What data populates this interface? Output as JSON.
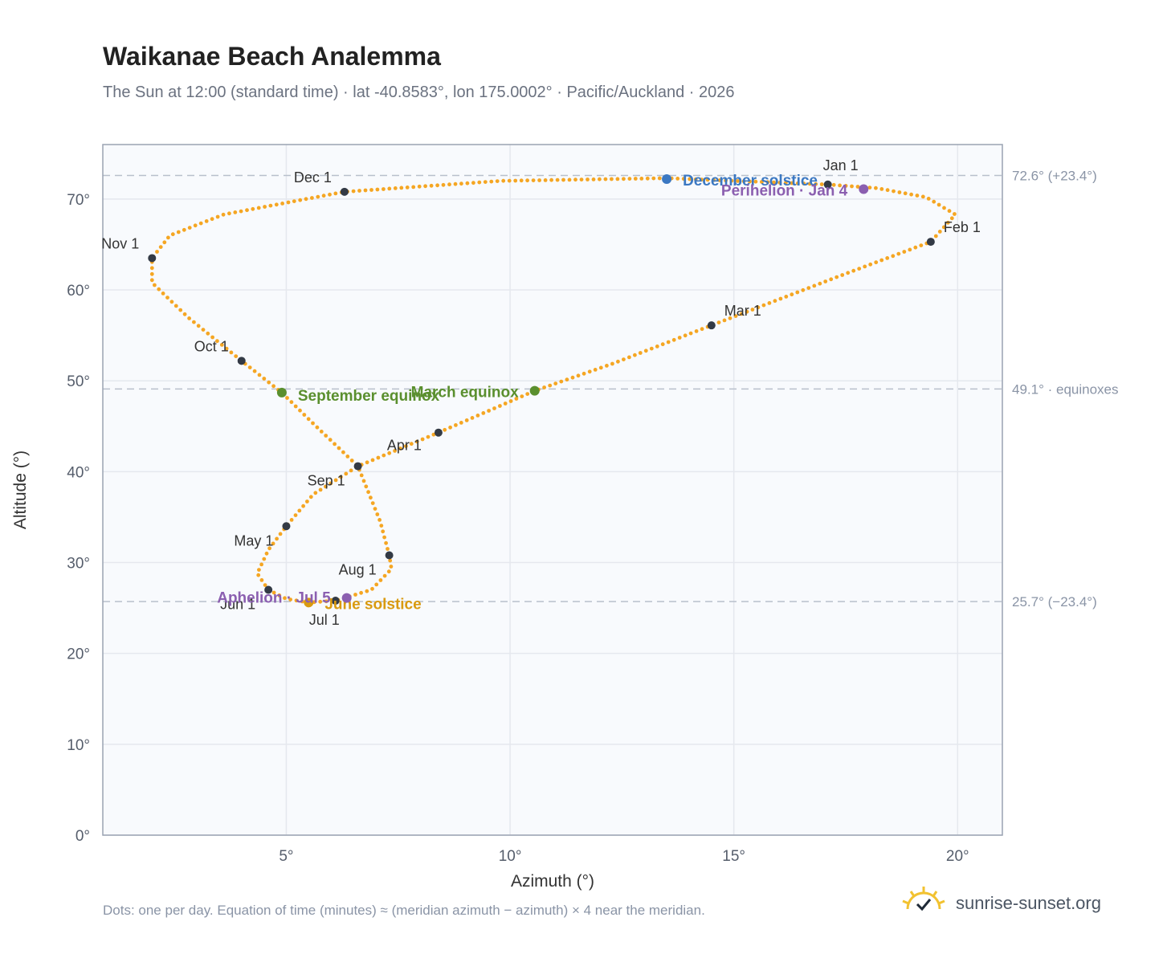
{
  "title": "Waikanae Beach Analemma",
  "subtitle": "The Sun at 12:00 (standard time) · lat -40.8583°, lon 175.0002° · Pacific/Auckland · 2026",
  "footnote": "Dots: one per day. Equation of time (minutes) ≈ (meridian azimuth − azimuth) × 4 near the meridian.",
  "brand": {
    "name": "sunrise-sunset.org",
    "logo_icon": "sun-logo-icon"
  },
  "colors": {
    "curve": "#f5a623",
    "month_marker": "#333a45",
    "solstice_dec": "#3b78c2",
    "solstice_jun": "#d99a10",
    "equinox": "#5a8f2e",
    "apsis": "#8b5fb0",
    "grid": "#e5e8ee",
    "plot_bg": "#f8fafd",
    "ref_line": "#b8c0cc",
    "axis_text": "#555d6b"
  },
  "chart_data": {
    "type": "scatter",
    "title": "Waikanae Beach Analemma",
    "xlabel": "Azimuth (°)",
    "ylabel": "Altitude (°)",
    "xlim": [
      0.9,
      21.0
    ],
    "ylim": [
      0,
      76
    ],
    "x_ticks": [
      5,
      10,
      15,
      20
    ],
    "x_tick_labels": [
      "5°",
      "10°",
      "15°",
      "20°"
    ],
    "y_ticks": [
      0,
      10,
      20,
      30,
      40,
      50,
      60,
      70
    ],
    "y_tick_labels": [
      "0°",
      "10°",
      "20°",
      "30°",
      "40°",
      "50°",
      "60°",
      "70°"
    ],
    "grid": true,
    "reference_lines": [
      {
        "y": 72.6,
        "label": "72.6° (+23.4°)"
      },
      {
        "y": 49.1,
        "label": "49.1° · equinoxes"
      },
      {
        "y": 25.7,
        "label": "25.7° (−23.4°)"
      }
    ],
    "curve_points": [
      {
        "x": 17.1,
        "y": 71.6
      },
      {
        "x": 18.2,
        "y": 71.2
      },
      {
        "x": 19.3,
        "y": 70.2
      },
      {
        "x": 19.95,
        "y": 68.3
      },
      {
        "x": 19.4,
        "y": 65.3
      },
      {
        "x": 17.4,
        "y": 61.6
      },
      {
        "x": 14.5,
        "y": 56.1
      },
      {
        "x": 12.3,
        "y": 51.9
      },
      {
        "x": 10.55,
        "y": 48.9
      },
      {
        "x": 8.4,
        "y": 44.3
      },
      {
        "x": 6.6,
        "y": 40.6
      },
      {
        "x": 5.6,
        "y": 37.5
      },
      {
        "x": 5.0,
        "y": 34.0
      },
      {
        "x": 4.6,
        "y": 31.4
      },
      {
        "x": 4.35,
        "y": 28.8
      },
      {
        "x": 4.6,
        "y": 27.0
      },
      {
        "x": 5.0,
        "y": 26.0
      },
      {
        "x": 5.5,
        "y": 25.6
      },
      {
        "x": 6.1,
        "y": 25.8
      },
      {
        "x": 6.9,
        "y": 27.0
      },
      {
        "x": 7.35,
        "y": 29.3
      },
      {
        "x": 7.3,
        "y": 30.8
      },
      {
        "x": 7.1,
        "y": 34.5
      },
      {
        "x": 6.6,
        "y": 40.6
      },
      {
        "x": 5.6,
        "y": 45.3
      },
      {
        "x": 4.9,
        "y": 48.7
      },
      {
        "x": 4.0,
        "y": 52.2
      },
      {
        "x": 2.8,
        "y": 57.0
      },
      {
        "x": 2.0,
        "y": 60.8
      },
      {
        "x": 2.0,
        "y": 63.5
      },
      {
        "x": 2.4,
        "y": 66.0
      },
      {
        "x": 3.6,
        "y": 68.3
      },
      {
        "x": 6.3,
        "y": 70.8
      },
      {
        "x": 9.8,
        "y": 72.0
      },
      {
        "x": 13.5,
        "y": 72.3
      },
      {
        "x": 17.1,
        "y": 71.6
      }
    ],
    "month_markers": [
      {
        "label": "Jan 1",
        "x": 17.1,
        "y": 71.6
      },
      {
        "label": "Feb 1",
        "x": 19.4,
        "y": 65.3
      },
      {
        "label": "Mar 1",
        "x": 14.5,
        "y": 56.1
      },
      {
        "label": "Apr 1",
        "x": 8.4,
        "y": 44.3
      },
      {
        "label": "May 1",
        "x": 5.0,
        "y": 34.0
      },
      {
        "label": "Jun 1",
        "x": 4.6,
        "y": 27.0
      },
      {
        "label": "Jul 1",
        "x": 6.1,
        "y": 25.8
      },
      {
        "label": "Aug 1",
        "x": 7.3,
        "y": 30.8
      },
      {
        "label": "Sep 1",
        "x": 6.6,
        "y": 40.6
      },
      {
        "label": "Oct 1",
        "x": 4.0,
        "y": 52.2
      },
      {
        "label": "Nov 1",
        "x": 2.0,
        "y": 63.5
      },
      {
        "label": "Dec 1",
        "x": 6.3,
        "y": 70.8
      }
    ],
    "events": [
      {
        "label": "December solstice",
        "x": 13.5,
        "y": 72.2,
        "kind": "solstice_dec"
      },
      {
        "label": "June solstice",
        "x": 5.5,
        "y": 25.6,
        "kind": "solstice_jun"
      },
      {
        "label": "March equinox",
        "x": 10.55,
        "y": 48.9,
        "kind": "equinox"
      },
      {
        "label": "September equinox",
        "x": 4.9,
        "y": 48.7,
        "kind": "equinox"
      },
      {
        "label": "Perihelion · Jan 4",
        "x": 17.9,
        "y": 71.1,
        "kind": "apsis"
      },
      {
        "label": "Aphelion · Jul 5",
        "x": 6.35,
        "y": 26.1,
        "kind": "apsis"
      }
    ]
  }
}
